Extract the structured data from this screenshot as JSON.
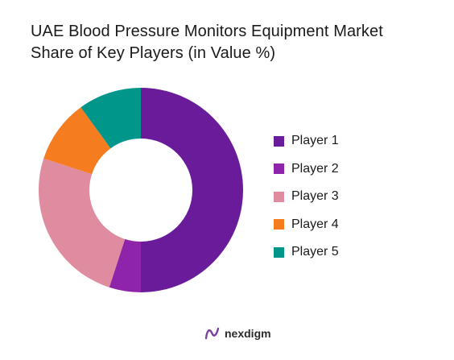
{
  "title": {
    "line1": "UAE Blood Pressure Monitors Equipment Market",
    "line2": "Share of Key Players (in Value %)"
  },
  "chart_data": {
    "type": "pie",
    "style": "donut",
    "title": "UAE Blood Pressure Monitors Equipment Market Share of Key Players (in Value %)",
    "legend_position": "right",
    "categories": [
      "Player 1",
      "Player 2",
      "Player 3",
      "Player 4",
      "Player 5"
    ],
    "values": [
      50,
      5,
      25,
      10,
      10
    ],
    "colors": [
      "#6a1b9a",
      "#8e24aa",
      "#e08ca0",
      "#f57c1f",
      "#00968a"
    ]
  },
  "brand": {
    "name": "nexdigm",
    "logo_icon": "nexdigm-logo-icon",
    "logo_color": "#7b3fa0"
  }
}
